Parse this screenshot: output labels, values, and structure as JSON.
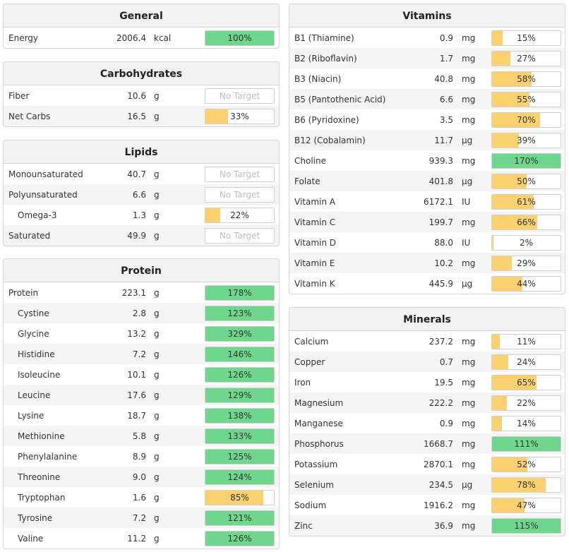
{
  "colors": {
    "green": "#6fd68e",
    "orange": "#fbd06e"
  },
  "left": [
    {
      "title": "General",
      "top": 5,
      "rows": [
        {
          "name": "Energy",
          "value": "2006.4",
          "unit": "kcal",
          "pct": "100%",
          "level": 100,
          "color": "green"
        }
      ]
    },
    {
      "title": "Carbohydrates",
      "top": 87,
      "rows": [
        {
          "name": "Fiber",
          "value": "10.6",
          "unit": "g",
          "pct": "No Target",
          "level": null
        },
        {
          "name": "Net Carbs",
          "value": "16.5",
          "unit": "g",
          "pct": "33%",
          "level": 33,
          "color": "orange"
        }
      ]
    },
    {
      "title": "Lipids",
      "top": 198,
      "rows": [
        {
          "name": "Monounsaturated",
          "value": "40.7",
          "unit": "g",
          "pct": "No Target",
          "level": null
        },
        {
          "name": "Polyunsaturated",
          "value": "6.6",
          "unit": "g",
          "pct": "No Target",
          "level": null
        },
        {
          "name": "Omega-3",
          "value": "1.3",
          "unit": "g",
          "pct": "22%",
          "level": 22,
          "color": "orange",
          "sub": true
        },
        {
          "name": "Saturated",
          "value": "49.9",
          "unit": "g",
          "pct": "No Target",
          "level": null
        }
      ]
    },
    {
      "title": "Protein",
      "top": 366,
      "rows": [
        {
          "name": "Protein",
          "value": "223.1",
          "unit": "g",
          "pct": "178%",
          "level": 100,
          "color": "green"
        },
        {
          "name": "Cystine",
          "value": "2.8",
          "unit": "g",
          "pct": "123%",
          "level": 100,
          "color": "green",
          "sub": true
        },
        {
          "name": "Glycine",
          "value": "13.2",
          "unit": "g",
          "pct": "329%",
          "level": 100,
          "color": "green",
          "sub": true
        },
        {
          "name": "Histidine",
          "value": "7.2",
          "unit": "g",
          "pct": "146%",
          "level": 100,
          "color": "green",
          "sub": true
        },
        {
          "name": "Isoleucine",
          "value": "10.1",
          "unit": "g",
          "pct": "126%",
          "level": 100,
          "color": "green",
          "sub": true
        },
        {
          "name": "Leucine",
          "value": "17.6",
          "unit": "g",
          "pct": "129%",
          "level": 100,
          "color": "green",
          "sub": true
        },
        {
          "name": "Lysine",
          "value": "18.7",
          "unit": "g",
          "pct": "138%",
          "level": 100,
          "color": "green",
          "sub": true
        },
        {
          "name": "Methionine",
          "value": "5.8",
          "unit": "g",
          "pct": "133%",
          "level": 100,
          "color": "green",
          "sub": true
        },
        {
          "name": "Phenylalanine",
          "value": "8.9",
          "unit": "g",
          "pct": "125%",
          "level": 100,
          "color": "green",
          "sub": true
        },
        {
          "name": "Threonine",
          "value": "9.0",
          "unit": "g",
          "pct": "124%",
          "level": 100,
          "color": "green",
          "sub": true
        },
        {
          "name": "Tryptophan",
          "value": "1.6",
          "unit": "g",
          "pct": "85%",
          "level": 85,
          "color": "orange",
          "sub": true
        },
        {
          "name": "Tyrosine",
          "value": "7.2",
          "unit": "g",
          "pct": "121%",
          "level": 100,
          "color": "green",
          "sub": true
        },
        {
          "name": "Valine",
          "value": "11.2",
          "unit": "g",
          "pct": "126%",
          "level": 100,
          "color": "green",
          "sub": true
        }
      ]
    }
  ],
  "right": [
    {
      "title": "Vitamins",
      "top": 5,
      "rows": [
        {
          "name": "B1 (Thiamine)",
          "value": "0.9",
          "unit": "mg",
          "pct": "15%",
          "level": 15,
          "color": "orange"
        },
        {
          "name": "B2 (Riboflavin)",
          "value": "1.7",
          "unit": "mg",
          "pct": "27%",
          "level": 27,
          "color": "orange"
        },
        {
          "name": "B3 (Niacin)",
          "value": "40.8",
          "unit": "mg",
          "pct": "58%",
          "level": 58,
          "color": "orange"
        },
        {
          "name": "B5 (Pantothenic Acid)",
          "value": "6.6",
          "unit": "mg",
          "pct": "55%",
          "level": 55,
          "color": "orange"
        },
        {
          "name": "B6 (Pyridoxine)",
          "value": "3.5",
          "unit": "mg",
          "pct": "70%",
          "level": 70,
          "color": "orange"
        },
        {
          "name": "B12 (Cobalamin)",
          "value": "11.7",
          "unit": "µg",
          "pct": "39%",
          "level": 39,
          "color": "orange"
        },
        {
          "name": "Choline",
          "value": "939.3",
          "unit": "mg",
          "pct": "170%",
          "level": 100,
          "color": "green"
        },
        {
          "name": "Folate",
          "value": "401.8",
          "unit": "µg",
          "pct": "50%",
          "level": 50,
          "color": "orange"
        },
        {
          "name": "Vitamin A",
          "value": "6172.1",
          "unit": "IU",
          "pct": "61%",
          "level": 61,
          "color": "orange"
        },
        {
          "name": "Vitamin C",
          "value": "199.7",
          "unit": "mg",
          "pct": "66%",
          "level": 66,
          "color": "orange"
        },
        {
          "name": "Vitamin D",
          "value": "88.0",
          "unit": "IU",
          "pct": "2%",
          "level": 2,
          "color": "orange"
        },
        {
          "name": "Vitamin E",
          "value": "10.2",
          "unit": "mg",
          "pct": "29%",
          "level": 29,
          "color": "orange"
        },
        {
          "name": "Vitamin K",
          "value": "445.9",
          "unit": "µg",
          "pct": "44%",
          "level": 44,
          "color": "orange"
        }
      ]
    },
    {
      "title": "Minerals",
      "top": 435,
      "rows": [
        {
          "name": "Calcium",
          "value": "237.2",
          "unit": "mg",
          "pct": "11%",
          "level": 11,
          "color": "orange"
        },
        {
          "name": "Copper",
          "value": "0.7",
          "unit": "mg",
          "pct": "24%",
          "level": 24,
          "color": "orange"
        },
        {
          "name": "Iron",
          "value": "19.5",
          "unit": "mg",
          "pct": "65%",
          "level": 65,
          "color": "orange"
        },
        {
          "name": "Magnesium",
          "value": "222.2",
          "unit": "mg",
          "pct": "22%",
          "level": 22,
          "color": "orange"
        },
        {
          "name": "Manganese",
          "value": "0.9",
          "unit": "mg",
          "pct": "14%",
          "level": 14,
          "color": "orange"
        },
        {
          "name": "Phosphorus",
          "value": "1668.7",
          "unit": "mg",
          "pct": "111%",
          "level": 100,
          "color": "green"
        },
        {
          "name": "Potassium",
          "value": "2870.1",
          "unit": "mg",
          "pct": "52%",
          "level": 52,
          "color": "orange"
        },
        {
          "name": "Selenium",
          "value": "234.5",
          "unit": "µg",
          "pct": "78%",
          "level": 78,
          "color": "orange"
        },
        {
          "name": "Sodium",
          "value": "1916.2",
          "unit": "mg",
          "pct": "47%",
          "level": 47,
          "color": "orange"
        },
        {
          "name": "Zinc",
          "value": "36.9",
          "unit": "mg",
          "pct": "115%",
          "level": 100,
          "color": "green"
        }
      ]
    }
  ]
}
